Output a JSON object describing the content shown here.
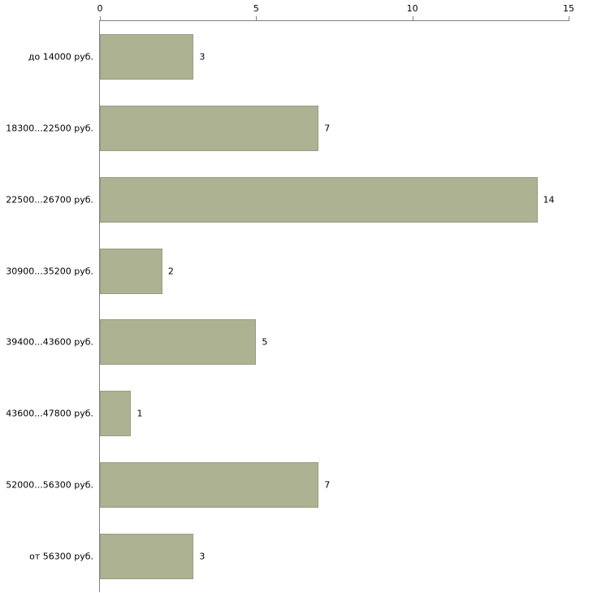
{
  "chart_data": {
    "type": "bar",
    "orientation": "horizontal",
    "title": "",
    "xlabel": "",
    "ylabel": "",
    "categories": [
      "до 14000 руб.",
      "18300...22500 руб.",
      "22500...26700 руб.",
      "30900...35200 руб.",
      "39400...43600 руб.",
      "43600...47800 руб.",
      "52000...56300 руб.",
      "от 56300 руб."
    ],
    "values": [
      3,
      7,
      14,
      2,
      5,
      1,
      7,
      3
    ],
    "xlim": [
      0,
      15
    ],
    "x_ticks": [
      0,
      5,
      10,
      15
    ],
    "grid": false,
    "legend": false,
    "colors": {
      "bar_fill": "#adb293",
      "bar_border": "#979d80",
      "axis_line": "#808080",
      "text": "#000000",
      "background": "#ffffff"
    }
  }
}
